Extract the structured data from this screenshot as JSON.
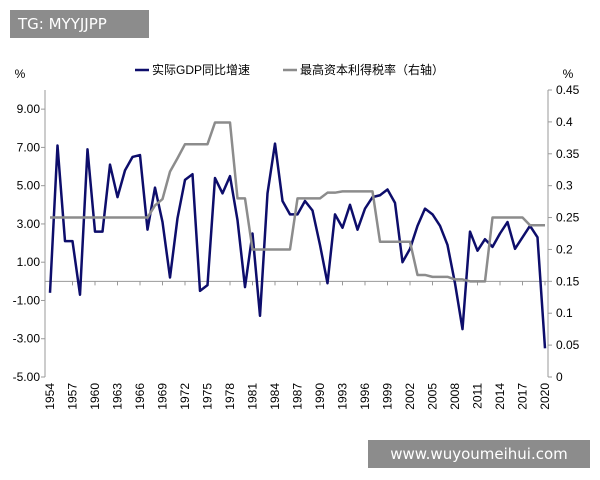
{
  "watermarks": {
    "top": "TG: MYYJJPP",
    "bottom": "www.wuyoumeihui.com"
  },
  "chart_data": {
    "type": "line",
    "left_unit": "%",
    "right_unit": "%",
    "legend_position": "top",
    "grid": false,
    "x": [
      1954,
      1955,
      1956,
      1957,
      1958,
      1959,
      1960,
      1961,
      1962,
      1963,
      1964,
      1965,
      1966,
      1967,
      1968,
      1969,
      1970,
      1971,
      1972,
      1973,
      1974,
      1975,
      1976,
      1977,
      1978,
      1979,
      1980,
      1981,
      1982,
      1983,
      1984,
      1985,
      1986,
      1987,
      1988,
      1989,
      1990,
      1991,
      1992,
      1993,
      1994,
      1995,
      1996,
      1997,
      1998,
      1999,
      2000,
      2001,
      2002,
      2003,
      2004,
      2005,
      2006,
      2007,
      2008,
      2009,
      2010,
      2011,
      2012,
      2013,
      2014,
      2015,
      2016,
      2017,
      2018,
      2019,
      2020
    ],
    "x_tick_labels": [
      "1954",
      "1957",
      "1960",
      "1963",
      "1966",
      "1969",
      "1972",
      "1975",
      "1978",
      "1981",
      "1984",
      "1987",
      "1990",
      "1993",
      "1996",
      "1999",
      "2002",
      "2005",
      "2008",
      "2011",
      "2014",
      "2017",
      "2020"
    ],
    "left_ylim": [
      -5,
      10
    ],
    "left_tick_labels": [
      "-5.00",
      "-3.00",
      "-1.00",
      "1.00",
      "3.00",
      "5.00",
      "7.00",
      "9.00"
    ],
    "right_ylim": [
      0,
      0.45
    ],
    "right_tick_labels": [
      "0",
      "0.05",
      "0.1",
      "0.15",
      "0.2",
      "0.25",
      "0.3",
      "0.35",
      "0.4",
      "0.45"
    ],
    "series": [
      {
        "name": "实际GDP同比增速",
        "axis": "left",
        "color": "#0d0d6b",
        "values": [
          -0.6,
          7.1,
          2.1,
          2.1,
          -0.7,
          6.9,
          2.6,
          2.6,
          6.1,
          4.4,
          5.8,
          6.5,
          6.6,
          2.7,
          4.9,
          3.1,
          0.2,
          3.3,
          5.3,
          5.6,
          -0.5,
          -0.2,
          5.4,
          4.6,
          5.5,
          3.2,
          -0.3,
          2.5,
          -1.8,
          4.6,
          7.2,
          4.2,
          3.5,
          3.5,
          4.2,
          3.7,
          1.9,
          -0.1,
          3.5,
          2.8,
          4.0,
          2.7,
          3.8,
          4.4,
          4.5,
          4.8,
          4.1,
          1.0,
          1.7,
          2.9,
          3.8,
          3.5,
          2.9,
          1.9,
          -0.1,
          -2.5,
          2.6,
          1.6,
          2.2,
          1.8,
          2.5,
          3.1,
          1.7,
          2.3,
          2.9,
          2.3,
          -3.5
        ]
      },
      {
        "name": "最高资本利得税率（右轴）",
        "axis": "right",
        "color": "#8c8c8c",
        "values": [
          0.25,
          0.25,
          0.25,
          0.25,
          0.25,
          0.25,
          0.25,
          0.25,
          0.25,
          0.25,
          0.25,
          0.25,
          0.25,
          0.25,
          0.269,
          0.279,
          0.322,
          0.343,
          0.365,
          0.365,
          0.365,
          0.365,
          0.399,
          0.399,
          0.399,
          0.28,
          0.28,
          0.2,
          0.2,
          0.2,
          0.2,
          0.2,
          0.2,
          0.28,
          0.28,
          0.28,
          0.28,
          0.289,
          0.289,
          0.291,
          0.291,
          0.291,
          0.291,
          0.291,
          0.212,
          0.212,
          0.212,
          0.212,
          0.212,
          0.16,
          0.16,
          0.157,
          0.157,
          0.157,
          0.153,
          0.153,
          0.15,
          0.15,
          0.15,
          0.25,
          0.25,
          0.25,
          0.25,
          0.25,
          0.238,
          0.238,
          0.238
        ]
      }
    ]
  }
}
